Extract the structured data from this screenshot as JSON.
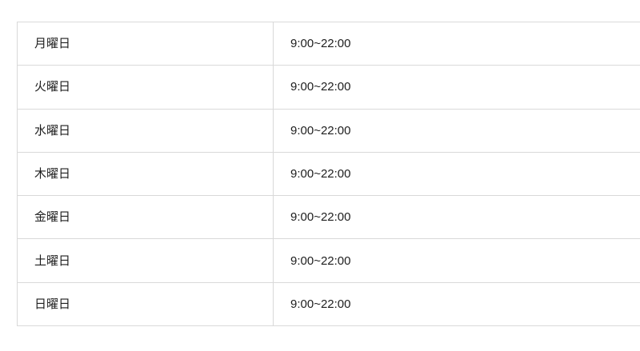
{
  "schedule_table": {
    "rows": [
      {
        "day": "月曜日",
        "hours": "9:00~22:00"
      },
      {
        "day": "火曜日",
        "hours": "9:00~22:00"
      },
      {
        "day": "水曜日",
        "hours": "9:00~22:00"
      },
      {
        "day": "木曜日",
        "hours": "9:00~22:00"
      },
      {
        "day": "金曜日",
        "hours": "9:00~22:00"
      },
      {
        "day": "土曜日",
        "hours": "9:00~22:00"
      },
      {
        "day": "日曜日",
        "hours": "9:00~22:00"
      }
    ]
  },
  "colors": {
    "background": "#ffffff",
    "border": "#d9d9d9",
    "text": "#1e1e1e"
  }
}
